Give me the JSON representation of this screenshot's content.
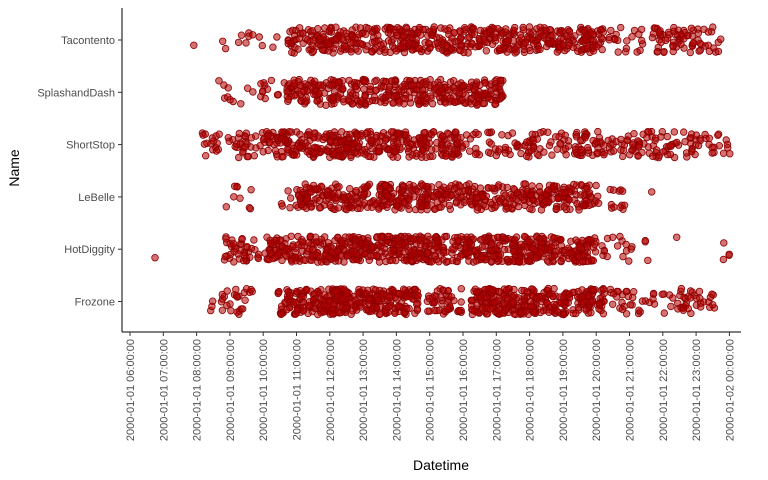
{
  "chart_data": {
    "type": "scatter",
    "title": "",
    "xlabel": "Datetime",
    "ylabel": "Name",
    "point_color": "#b30000",
    "point_stroke": "#8b0000",
    "grid": false,
    "legend": "none",
    "categories": [
      "Frozone",
      "HotDiggity",
      "LeBelle",
      "ShortStop",
      "SplashandDash",
      "Tacontento"
    ],
    "x_ticks": [
      "2000-01-01 06:00:00",
      "2000-01-01 07:00:00",
      "2000-01-01 08:00:00",
      "2000-01-01 09:00:00",
      "2000-01-01 10:00:00",
      "2000-01-01 11:00:00",
      "2000-01-01 12:00:00",
      "2000-01-01 13:00:00",
      "2000-01-01 14:00:00",
      "2000-01-01 15:00:00",
      "2000-01-01 16:00:00",
      "2000-01-01 17:00:00",
      "2000-01-01 18:00:00",
      "2000-01-01 19:00:00",
      "2000-01-01 20:00:00",
      "2000-01-01 21:00:00",
      "2000-01-01 22:00:00",
      "2000-01-01 23:00:00",
      "2000-01-02 00:00:00"
    ],
    "xlim": [
      "2000-01-01 05:45:00",
      "2000-01-02 00:20:00"
    ],
    "series": [
      {
        "category": "Frozone",
        "segments": [
          {
            "start": "2000-01-01 08:20:00",
            "end": "2000-01-01 09:55:00",
            "count": 28
          },
          {
            "start": "2000-01-01 10:25:00",
            "end": "2000-01-01 14:40:00",
            "count": 320
          },
          {
            "start": "2000-01-01 14:55:00",
            "end": "2000-01-01 16:00:00",
            "count": 45
          },
          {
            "start": "2000-01-01 16:15:00",
            "end": "2000-01-01 20:15:00",
            "count": 300
          },
          {
            "start": "2000-01-01 20:25:00",
            "end": "2000-01-01 23:35:00",
            "count": 70
          }
        ]
      },
      {
        "category": "HotDiggity",
        "segments": [
          {
            "start": "2000-01-01 06:45:00",
            "end": "2000-01-01 06:45:00",
            "count": 1
          },
          {
            "start": "2000-01-01 08:50:00",
            "end": "2000-01-01 10:00:00",
            "count": 40
          },
          {
            "start": "2000-01-01 10:00:00",
            "end": "2000-01-01 15:10:00",
            "count": 360
          },
          {
            "start": "2000-01-01 15:10:00",
            "end": "2000-01-01 16:50:00",
            "count": 110
          },
          {
            "start": "2000-01-01 16:50:00",
            "end": "2000-01-01 20:00:00",
            "count": 230
          },
          {
            "start": "2000-01-01 20:10:00",
            "end": "2000-01-01 21:05:00",
            "count": 16
          },
          {
            "start": "2000-01-01 21:25:00",
            "end": "2000-01-01 21:35:00",
            "count": 3
          },
          {
            "start": "2000-01-01 22:25:00",
            "end": "2000-01-01 22:25:00",
            "count": 1
          },
          {
            "start": "2000-01-01 23:35:00",
            "end": "2000-01-02 00:05:00",
            "count": 4
          }
        ]
      },
      {
        "category": "LeBelle",
        "segments": [
          {
            "start": "2000-01-01 08:50:00",
            "end": "2000-01-01 09:45:00",
            "count": 9
          },
          {
            "start": "2000-01-01 10:30:00",
            "end": "2000-01-01 11:00:00",
            "count": 6
          },
          {
            "start": "2000-01-01 11:00:00",
            "end": "2000-01-01 16:00:00",
            "count": 280
          },
          {
            "start": "2000-01-01 16:00:00",
            "end": "2000-01-01 17:15:00",
            "count": 60
          },
          {
            "start": "2000-01-01 17:15:00",
            "end": "2000-01-01 20:00:00",
            "count": 150
          },
          {
            "start": "2000-01-01 20:00:00",
            "end": "2000-01-01 20:55:00",
            "count": 14
          },
          {
            "start": "2000-01-01 21:40:00",
            "end": "2000-01-01 21:40:00",
            "count": 1
          }
        ]
      },
      {
        "category": "ShortStop",
        "segments": [
          {
            "start": "2000-01-01 08:10:00",
            "end": "2000-01-01 10:00:00",
            "count": 45
          },
          {
            "start": "2000-01-01 10:00:00",
            "end": "2000-01-01 16:00:00",
            "count": 360
          },
          {
            "start": "2000-01-01 16:00:00",
            "end": "2000-01-01 17:30:00",
            "count": 30
          },
          {
            "start": "2000-01-01 17:30:00",
            "end": "2000-01-01 19:00:00",
            "count": 40
          },
          {
            "start": "2000-01-01 19:00:00",
            "end": "2000-01-01 23:00:00",
            "count": 130
          },
          {
            "start": "2000-01-01 23:00:00",
            "end": "2000-01-02 00:05:00",
            "count": 20
          }
        ]
      },
      {
        "category": "SplashandDash",
        "segments": [
          {
            "start": "2000-01-01 08:40:00",
            "end": "2000-01-01 10:40:00",
            "count": 22
          },
          {
            "start": "2000-01-01 10:40:00",
            "end": "2000-01-01 17:15:00",
            "count": 360
          }
        ]
      },
      {
        "category": "Tacontento",
        "segments": [
          {
            "start": "2000-01-01 07:55:00",
            "end": "2000-01-01 07:55:00",
            "count": 1
          },
          {
            "start": "2000-01-01 08:45:00",
            "end": "2000-01-01 10:30:00",
            "count": 12
          },
          {
            "start": "2000-01-01 10:45:00",
            "end": "2000-01-01 20:15:00",
            "count": 520
          },
          {
            "start": "2000-01-01 20:20:00",
            "end": "2000-01-01 21:25:00",
            "count": 20
          },
          {
            "start": "2000-01-01 21:40:00",
            "end": "2000-01-01 23:45:00",
            "count": 70
          }
        ]
      }
    ]
  }
}
